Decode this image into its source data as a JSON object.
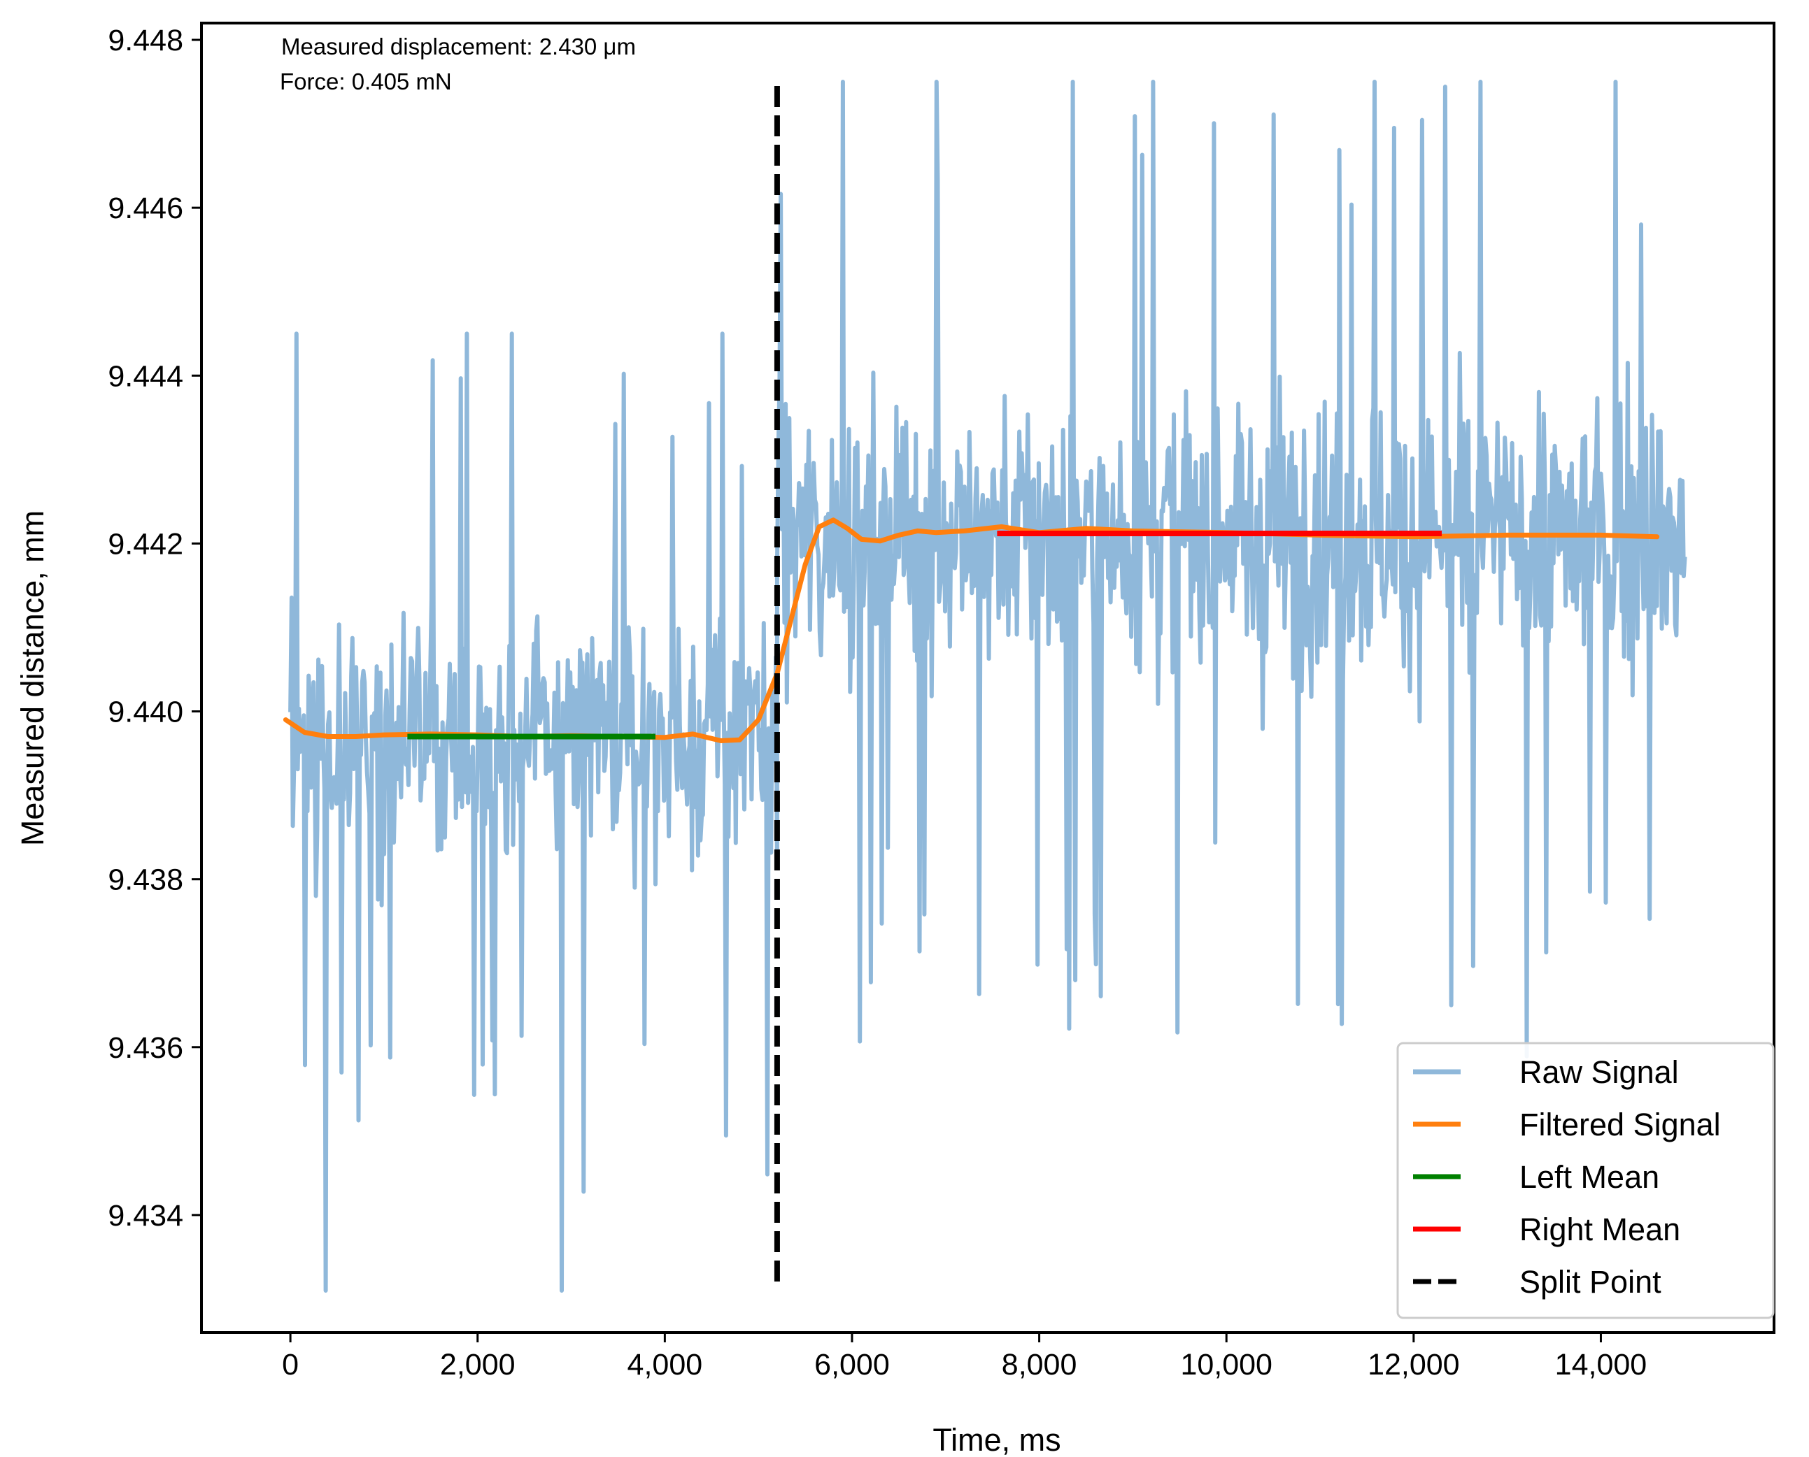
{
  "chart_data": {
    "type": "line",
    "title": "",
    "xlabel": "Time, ms",
    "ylabel": "Measured distance, mm",
    "xlim": [
      -950,
      15850
    ],
    "ylim": [
      9.4326,
      9.4482
    ],
    "xticks": [
      0,
      2000,
      4000,
      6000,
      8000,
      10000,
      12000,
      14000
    ],
    "xtick_labels": [
      "0",
      "2,000",
      "4,000",
      "6,000",
      "8,000",
      "10,000",
      "12,000",
      "14,000"
    ],
    "yticks": [
      9.434,
      9.436,
      9.438,
      9.44,
      9.442,
      9.444,
      9.446,
      9.448
    ],
    "ytick_labels": [
      "9.434",
      "9.436",
      "9.438",
      "9.440",
      "9.442",
      "9.444",
      "9.446",
      "9.448"
    ],
    "grid": false,
    "legend_position": "lower-right",
    "annotations": [
      "Measured displacement: 2.430 μm",
      "Force: 0.405 mN"
    ],
    "series": [
      {
        "name": "Raw Signal",
        "kind": "noisy-line",
        "color": "#8fb8da",
        "segments": [
          {
            "x_start": 0,
            "x_end": 5200,
            "mean": 9.4397,
            "noise_range": [
              9.4331,
              9.4445
            ]
          },
          {
            "x_start": 5200,
            "x_end": 14900,
            "mean": 9.4421,
            "noise_range": [
              9.4345,
              9.4475
            ]
          }
        ],
        "spike_extremes": [
          {
            "x": 380,
            "y": 9.4331
          },
          {
            "x": 2900,
            "y": 9.4331
          },
          {
            "x": 6900,
            "y": 9.4475
          },
          {
            "x": 5900,
            "y": 9.4475
          },
          {
            "x": 12400,
            "y": 9.4365
          }
        ]
      },
      {
        "name": "Filtered Signal",
        "color": "#ff7f0e",
        "x": [
          -50,
          150,
          400,
          700,
          1000,
          1500,
          2000,
          2500,
          3000,
          3500,
          4000,
          4300,
          4600,
          4800,
          5000,
          5200,
          5350,
          5500,
          5650,
          5800,
          5950,
          6100,
          6300,
          6500,
          6700,
          6900,
          7200,
          7600,
          8000,
          8500,
          9000,
          10000,
          11000,
          12000,
          13000,
          14000,
          14600
        ],
        "y": [
          9.4399,
          9.43975,
          9.4397,
          9.4397,
          9.43972,
          9.43973,
          9.43972,
          9.4397,
          9.43971,
          9.4397,
          9.43969,
          9.43973,
          9.43965,
          9.43966,
          9.4399,
          9.44045,
          9.4411,
          9.44175,
          9.4422,
          9.44228,
          9.44218,
          9.44205,
          9.44203,
          9.4421,
          9.44215,
          9.44213,
          9.44215,
          9.4422,
          9.44213,
          9.44218,
          9.44215,
          9.44213,
          9.4421,
          9.44208,
          9.4421,
          9.4421,
          9.44208
        ]
      },
      {
        "name": "Left Mean",
        "color": "#008000",
        "x": [
          1250,
          3900
        ],
        "y": [
          9.4397,
          9.4397
        ]
      },
      {
        "name": "Right Mean",
        "color": "#ff0000",
        "x": [
          7550,
          12300
        ],
        "y": [
          9.44212,
          9.44212
        ]
      },
      {
        "name": "Split Point",
        "kind": "vline",
        "style": "dashed",
        "color": "#000000",
        "x": 5200,
        "y_range": [
          9.4332,
          9.44745
        ]
      }
    ]
  }
}
